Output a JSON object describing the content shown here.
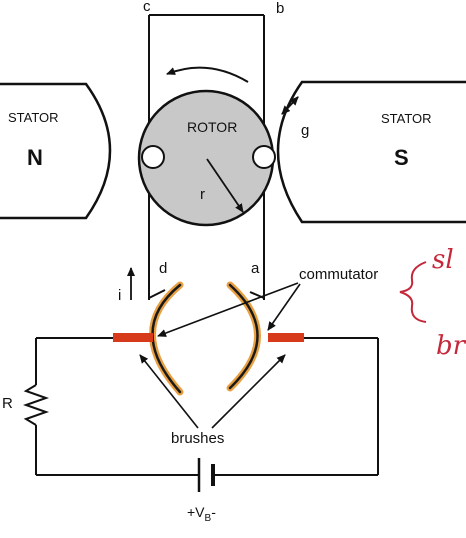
{
  "labels": {
    "corner_c": "c",
    "corner_b": "b",
    "corner_d": "d",
    "corner_a": "a",
    "stator_left": "STATOR",
    "stator_right": "STATOR",
    "pole_north": "N",
    "pole_south": "S",
    "rotor": "ROTOR",
    "radius": "r",
    "air_gap": "g",
    "current": "i",
    "commutator": "commutator",
    "resistor": "R",
    "brushes": "brushes",
    "supply_plus": "+V",
    "supply_sub": "B",
    "supply_minus": "-"
  },
  "handwritten": {
    "note_top": "sl",
    "note_bottom": "br"
  },
  "colors": {
    "line": "#111111",
    "rotor_fill": "#c8c8c8",
    "commutator_outer": "#e8a040",
    "commutator_inner": "#1a1a1a",
    "brush": "#d63a1a",
    "handwriting": "#c4283a"
  }
}
